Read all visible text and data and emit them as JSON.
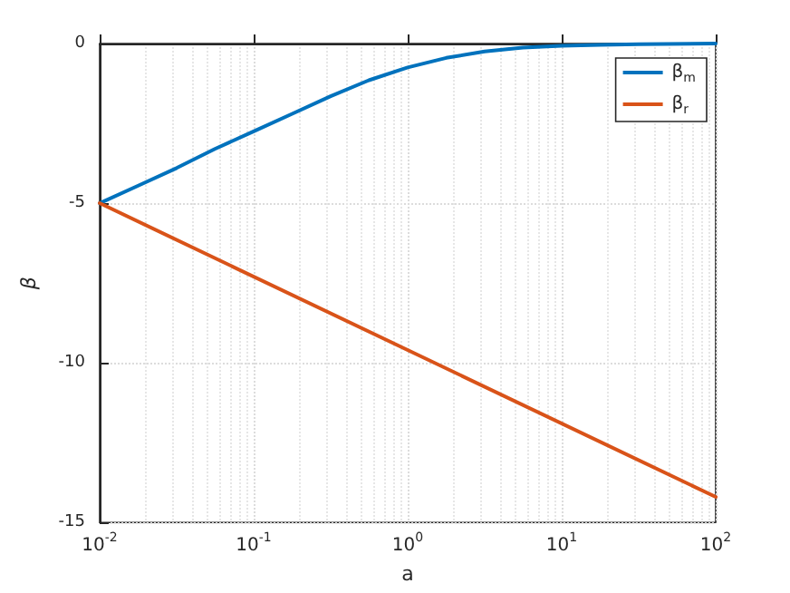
{
  "chart_data": {
    "type": "line",
    "xlabel": "a",
    "ylabel": "β",
    "log": "x",
    "grid": true,
    "legend": "top right",
    "line_style": "solid",
    "marker": "none",
    "xlim": [
      0.01,
      100
    ],
    "xticks": [
      {
        "value": 0.01,
        "label": "10$^{-2}$"
      },
      {
        "value": 0.1,
        "label": "10$^{-1}$"
      },
      {
        "value": 1,
        "label": "10$^{0}$"
      },
      {
        "value": 10,
        "label": "10$^{1}$"
      },
      {
        "value": 100,
        "label": "10$^{2}$"
      }
    ],
    "ylim": [
      -15,
      0
    ],
    "yticks": [
      -15,
      -10,
      -5,
      0
    ],
    "series": [
      {
        "name": "β$_{m}$",
        "color": "#0072bd",
        "x": [
          0.01,
          0.0178,
          0.0316,
          0.056,
          0.1,
          0.178,
          0.316,
          0.56,
          1,
          1.78,
          3.16,
          5.6,
          10,
          17.8,
          31.6,
          100
        ],
        "values": [
          -5,
          -4.45,
          -3.9,
          -3.3,
          -2.75,
          -2.2,
          -1.65,
          -1.15,
          -0.75,
          -0.45,
          -0.25,
          -0.13,
          -0.07,
          -0.04,
          -0.02,
          0
        ]
      },
      {
        "name": "β$_{r}$",
        "color": "#d95319",
        "x": [
          0.01,
          100
        ],
        "values": [
          -5,
          -14.2
        ]
      }
    ]
  }
}
